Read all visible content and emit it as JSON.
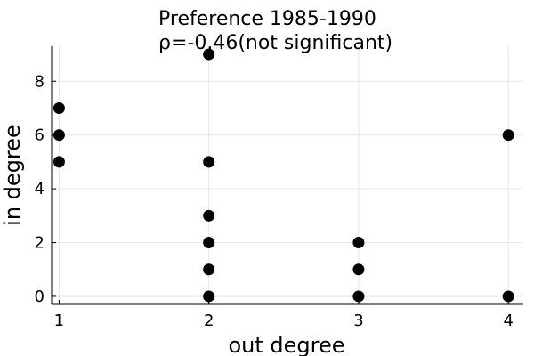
{
  "chart_data": {
    "type": "scatter",
    "title": "Preference 1985-1990",
    "subtitle": "ρ=-0.46(not significant)",
    "xlabel": "out degree",
    "ylabel": "in degree",
    "xlim": [
      0.95,
      4.1
    ],
    "ylim": [
      -0.3,
      9.3
    ],
    "xticks": [
      1,
      2,
      3,
      4
    ],
    "yticks": [
      0,
      2,
      4,
      6,
      8
    ],
    "grid": true,
    "legend": "none",
    "series": [
      {
        "color": "#000000",
        "x": [
          1,
          1,
          1,
          2,
          2,
          2,
          2,
          2,
          2,
          3,
          3,
          3,
          4,
          4
        ],
        "y": [
          7,
          6,
          5,
          9,
          5,
          3,
          2,
          1,
          0,
          2,
          1,
          0,
          6,
          0
        ]
      }
    ]
  }
}
